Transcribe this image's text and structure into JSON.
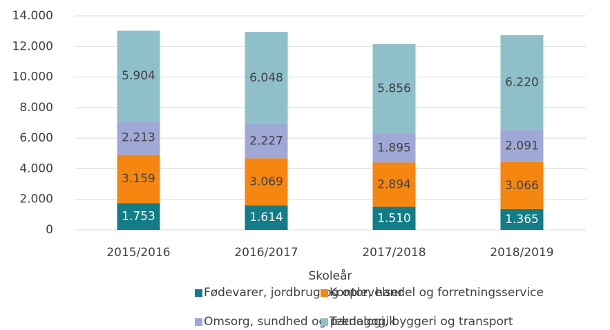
{
  "chart_data": {
    "type": "stacked_bar",
    "x_label": "Skoleår",
    "categories": [
      "2015/2016",
      "2016/2017",
      "2017/2018",
      "2018/2019"
    ],
    "series": [
      {
        "name": "Fødevarer, jordbrug og oplevelser",
        "color": "#127c87",
        "values": [
          1753,
          1614,
          1510,
          1365
        ],
        "value_labels": [
          "1.753",
          "1.614",
          "1.510",
          "1.365"
        ]
      },
      {
        "name": "Kontor, handel og forretningsservice",
        "color": "#f5860f",
        "values": [
          3159,
          3069,
          2894,
          3066
        ],
        "value_labels": [
          "3.159",
          "3.069",
          "2.894",
          "3.066"
        ]
      },
      {
        "name": "Omsorg, sundhed og pædagogik",
        "color": "#a0a8d6",
        "values": [
          2213,
          2227,
          1895,
          2091
        ],
        "value_labels": [
          "2.213",
          "2.227",
          "1.895",
          "2.091"
        ]
      },
      {
        "name": "Teknologi, byggeri og transport",
        "color": "#8fc0ca",
        "values": [
          5904,
          6048,
          5856,
          6220
        ],
        "value_labels": [
          "5.904",
          "6.048",
          "5.856",
          "6.220"
        ]
      }
    ],
    "ylim": [
      0,
      14000
    ],
    "yticks": [
      0,
      {
        "value": 2000,
        "label": "2.000"
      },
      {
        "value": 4000,
        "label": "4.000"
      },
      {
        "value": 6000,
        "label": "6.000"
      },
      {
        "value": 8000,
        "label": "8.000"
      },
      {
        "value": 10000,
        "label": "10.000"
      },
      {
        "value": 12000,
        "label": "12.000"
      },
      {
        "value": 14000,
        "label": "14.000"
      }
    ],
    "grid": true
  }
}
